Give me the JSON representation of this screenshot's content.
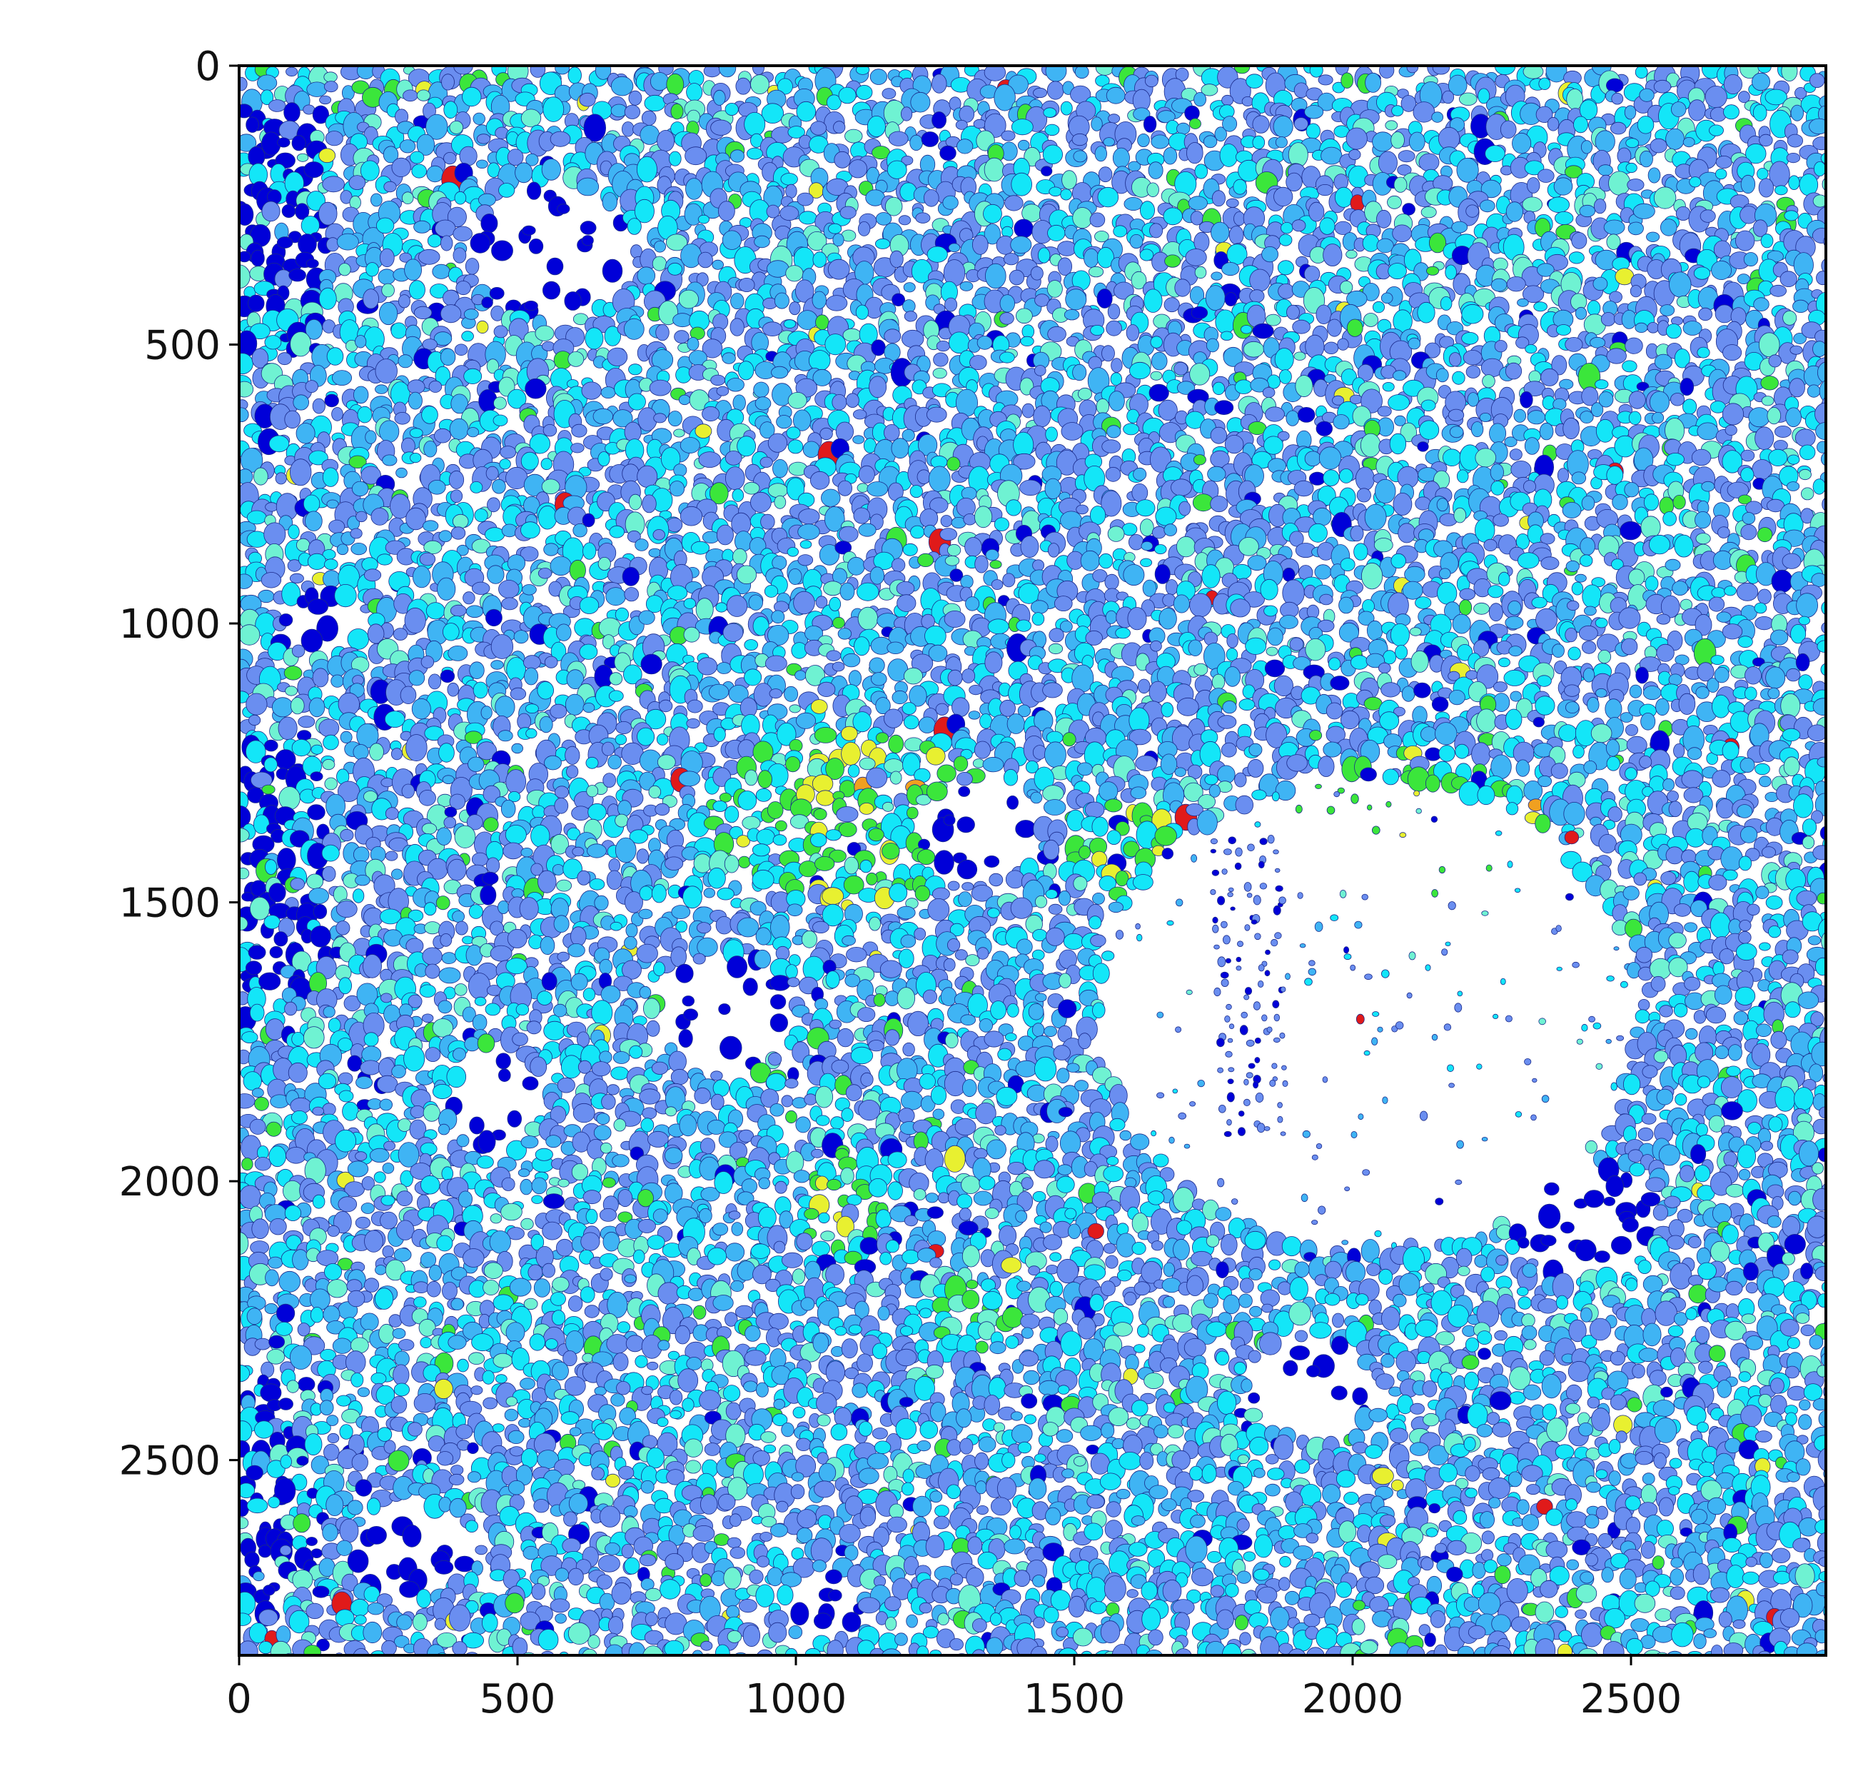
{
  "chart_data": {
    "type": "heatmap",
    "title": "",
    "xlabel": "",
    "ylabel": "",
    "xlim": [
      0,
      2850
    ],
    "ylim": [
      2850,
      0
    ],
    "x_ticks": [
      "0",
      "500",
      "1000",
      "1500",
      "2000",
      "2500"
    ],
    "x_tick_values": [
      0,
      500,
      1000,
      1500,
      2000,
      2500
    ],
    "y_ticks": [
      "0",
      "500",
      "1000",
      "1500",
      "2000",
      "2500"
    ],
    "y_tick_values": [
      0,
      500,
      1000,
      1500,
      2000,
      2500
    ],
    "colormap": "jet",
    "grid": false,
    "legend": "none",
    "palette": {
      "deep_blue": "#0000d8",
      "cornflower": "#6a8ef0",
      "sky": "#3fb4f4",
      "cyan": "#13e6f8",
      "aquamarine": "#6ff2d2",
      "green": "#3be63b",
      "yellow": "#e8f030",
      "orange": "#f0a020",
      "red": "#e01a1a",
      "background": "#ffffff"
    }
  }
}
